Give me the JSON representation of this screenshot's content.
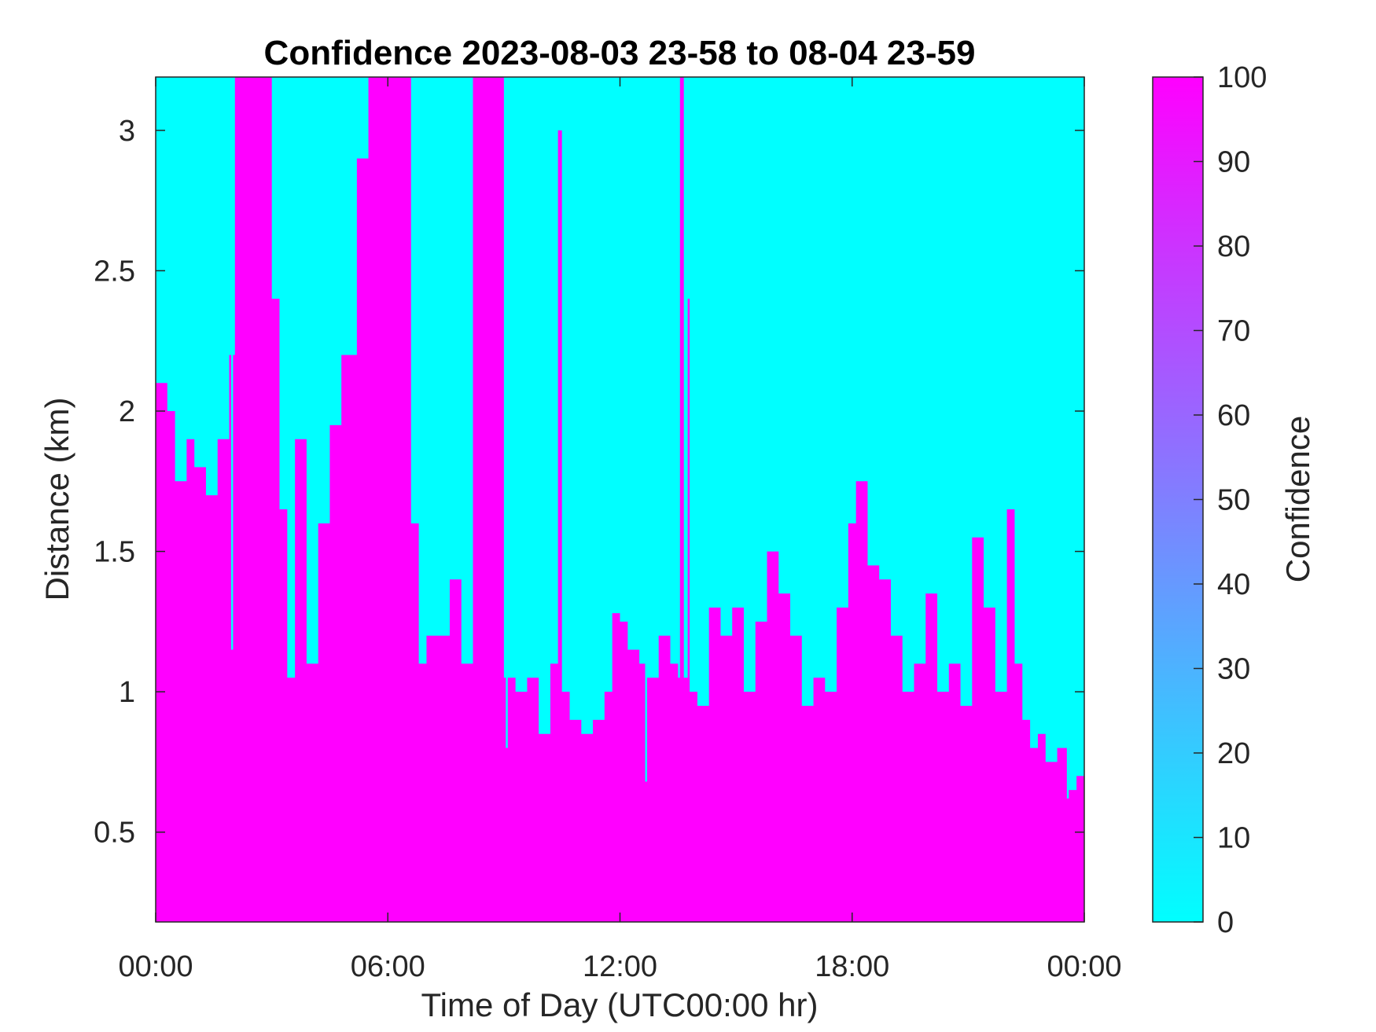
{
  "chart_data": {
    "type": "heatmap",
    "title": "Confidence 2023-08-03 23-58 to 08-04 23-59",
    "xlabel": "Time of Day (UTC00:00 hr)",
    "ylabel": "Distance (km)",
    "x_unit": "hours",
    "xlim": [
      0,
      24
    ],
    "ylim": [
      0.18,
      3.19
    ],
    "x_ticks": [
      {
        "value": 0,
        "label": "00:00"
      },
      {
        "value": 6,
        "label": "06:00"
      },
      {
        "value": 12,
        "label": "12:00"
      },
      {
        "value": 18,
        "label": "18:00"
      },
      {
        "value": 24,
        "label": "00:00"
      }
    ],
    "y_ticks": [
      {
        "value": 0.5,
        "label": "0.5"
      },
      {
        "value": 1,
        "label": "1"
      },
      {
        "value": 1.5,
        "label": "1.5"
      },
      {
        "value": 2,
        "label": "2"
      },
      {
        "value": 2.5,
        "label": "2.5"
      },
      {
        "value": 3,
        "label": "3"
      }
    ],
    "colorbar": {
      "label": "Confidence",
      "range": [
        0,
        100
      ],
      "ticks": [
        "0",
        "10",
        "20",
        "30",
        "40",
        "50",
        "60",
        "70",
        "80",
        "90",
        "100"
      ],
      "color_low": "#00ffff",
      "color_high": "#ff00ff"
    },
    "boundary_note": "High-confidence (100) region extends from the ground up to the boundary height in km at each hour; above it confidence is 0.",
    "boundary_height_km": [
      [
        0.0,
        2.1
      ],
      [
        0.3,
        2.0
      ],
      [
        0.5,
        1.75
      ],
      [
        0.8,
        1.9
      ],
      [
        1.0,
        1.8
      ],
      [
        1.3,
        1.7
      ],
      [
        1.6,
        1.9
      ],
      [
        1.9,
        2.2
      ],
      [
        2.05,
        3.19
      ],
      [
        2.5,
        3.19
      ],
      [
        3.0,
        2.4
      ],
      [
        3.2,
        1.65
      ],
      [
        3.4,
        1.05
      ],
      [
        3.6,
        1.9
      ],
      [
        3.9,
        1.1
      ],
      [
        4.2,
        1.6
      ],
      [
        4.5,
        1.95
      ],
      [
        4.8,
        2.2
      ],
      [
        5.0,
        2.2
      ],
      [
        5.2,
        2.9
      ],
      [
        5.5,
        3.19
      ],
      [
        6.5,
        3.19
      ],
      [
        6.6,
        1.6
      ],
      [
        6.8,
        1.1
      ],
      [
        7.0,
        1.2
      ],
      [
        7.3,
        1.2
      ],
      [
        7.6,
        1.4
      ],
      [
        7.9,
        1.1
      ],
      [
        8.2,
        3.19
      ],
      [
        8.9,
        3.19
      ],
      [
        9.0,
        1.05
      ],
      [
        9.3,
        1.0
      ],
      [
        9.6,
        1.05
      ],
      [
        9.9,
        0.85
      ],
      [
        10.2,
        1.1
      ],
      [
        10.4,
        3.0
      ],
      [
        10.5,
        1.0
      ],
      [
        10.7,
        0.9
      ],
      [
        11.0,
        0.85
      ],
      [
        11.3,
        0.9
      ],
      [
        11.6,
        1.0
      ],
      [
        11.8,
        1.28
      ],
      [
        12.0,
        1.25
      ],
      [
        12.2,
        1.15
      ],
      [
        12.5,
        1.1
      ],
      [
        12.7,
        1.05
      ],
      [
        13.0,
        1.2
      ],
      [
        13.3,
        1.1
      ],
      [
        13.5,
        1.05
      ],
      [
        13.8,
        1.0
      ],
      [
        14.0,
        0.95
      ],
      [
        14.3,
        1.3
      ],
      [
        14.6,
        1.2
      ],
      [
        14.9,
        1.3
      ],
      [
        15.2,
        1.0
      ],
      [
        15.5,
        1.25
      ],
      [
        15.8,
        1.5
      ],
      [
        16.1,
        1.35
      ],
      [
        16.4,
        1.2
      ],
      [
        16.7,
        0.95
      ],
      [
        17.0,
        1.05
      ],
      [
        17.3,
        1.0
      ],
      [
        17.6,
        1.3
      ],
      [
        17.9,
        1.6
      ],
      [
        18.1,
        1.75
      ],
      [
        18.4,
        1.45
      ],
      [
        18.7,
        1.4
      ],
      [
        19.0,
        1.2
      ],
      [
        19.3,
        1.0
      ],
      [
        19.6,
        1.1
      ],
      [
        19.9,
        1.35
      ],
      [
        20.2,
        1.0
      ],
      [
        20.5,
        1.1
      ],
      [
        20.8,
        0.95
      ],
      [
        21.1,
        1.55
      ],
      [
        21.4,
        1.3
      ],
      [
        21.7,
        1.0
      ],
      [
        22.0,
        1.65
      ],
      [
        22.2,
        1.1
      ],
      [
        22.4,
        0.9
      ],
      [
        22.6,
        0.8
      ],
      [
        22.8,
        0.85
      ],
      [
        23.0,
        0.75
      ],
      [
        23.3,
        0.8
      ],
      [
        23.6,
        0.65
      ],
      [
        23.8,
        0.7
      ],
      [
        24.0,
        0.85
      ]
    ],
    "high_confidence_columns": [
      {
        "x": [
          2.05,
          3.0
        ],
        "height_km": 3.19
      },
      {
        "x": [
          5.5,
          6.55
        ],
        "height_km": 3.19
      },
      {
        "x": [
          8.2,
          8.9
        ],
        "height_km": 3.19
      },
      {
        "x": [
          13.55,
          13.65
        ],
        "height_km": 3.19
      },
      {
        "x": [
          13.75,
          13.8
        ],
        "height_km": 2.4
      },
      {
        "x": [
          10.4,
          10.45
        ],
        "height_km": 3.0
      }
    ],
    "low_confidence_gaps": [
      {
        "x": [
          1.95,
          2.0
        ],
        "from_km": 1.15
      },
      {
        "x": [
          9.05,
          9.1
        ],
        "from_km": 0.8
      },
      {
        "x": [
          12.65,
          12.7
        ],
        "from_km": 0.68
      },
      {
        "x": [
          23.55,
          23.6
        ],
        "from_km": 0.62
      }
    ]
  }
}
